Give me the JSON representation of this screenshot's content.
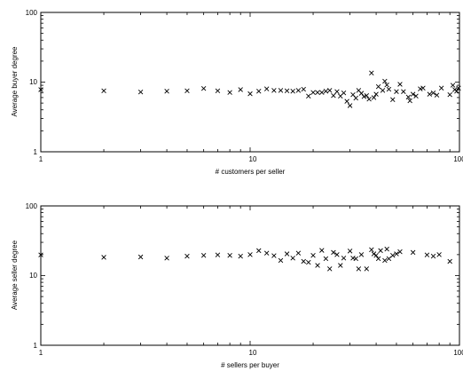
{
  "chart_data": [
    {
      "type": "scatter",
      "xlabel": "# customers per seller",
      "ylabel": "Average buyer degree",
      "xscale": "log",
      "yscale": "log",
      "xlim": [
        1,
        100
      ],
      "ylim": [
        1,
        100
      ],
      "x_tick_labels": [
        "1",
        "10",
        "100"
      ],
      "y_tick_labels": [
        "1",
        "10",
        "100"
      ],
      "grid": false,
      "marker": "x",
      "points": [
        [
          1,
          7.8
        ],
        [
          2,
          7.5
        ],
        [
          3,
          7.2
        ],
        [
          4,
          7.4
        ],
        [
          5,
          7.5
        ],
        [
          6,
          8.1
        ],
        [
          7,
          7.5
        ],
        [
          8,
          7.1
        ],
        [
          9,
          7.8
        ],
        [
          10,
          6.8
        ],
        [
          11,
          7.4
        ],
        [
          12,
          8.0
        ],
        [
          13,
          7.6
        ],
        [
          14,
          7.6
        ],
        [
          15,
          7.5
        ],
        [
          16,
          7.4
        ],
        [
          17,
          7.6
        ],
        [
          18,
          7.9
        ],
        [
          19,
          6.3
        ],
        [
          20,
          7.1
        ],
        [
          21,
          7.1
        ],
        [
          22,
          7.1
        ],
        [
          23,
          7.4
        ],
        [
          24,
          7.6
        ],
        [
          25,
          6.4
        ],
        [
          26,
          7.3
        ],
        [
          27,
          6.3
        ],
        [
          28,
          7.0
        ],
        [
          29,
          5.3
        ],
        [
          30,
          4.6
        ],
        [
          31,
          6.6
        ],
        [
          32,
          5.9
        ],
        [
          33,
          7.6
        ],
        [
          34,
          6.9
        ],
        [
          35,
          6.2
        ],
        [
          36,
          6.4
        ],
        [
          37,
          5.7
        ],
        [
          38,
          13.5
        ],
        [
          39,
          6.0
        ],
        [
          40,
          6.7
        ],
        [
          41,
          8.6
        ],
        [
          43,
          7.6
        ],
        [
          44,
          10.3
        ],
        [
          45,
          9.1
        ],
        [
          46,
          7.9
        ],
        [
          48,
          5.6
        ],
        [
          50,
          7.3
        ],
        [
          52,
          9.3
        ],
        [
          54,
          7.3
        ],
        [
          57,
          6.1
        ],
        [
          58,
          5.4
        ],
        [
          60,
          6.7
        ],
        [
          62,
          6.3
        ],
        [
          65,
          8.0
        ],
        [
          67,
          8.2
        ],
        [
          72,
          6.7
        ],
        [
          75,
          7.0
        ],
        [
          78,
          6.5
        ],
        [
          82,
          8.2
        ],
        [
          90,
          6.6
        ],
        [
          93,
          9.0
        ],
        [
          95,
          7.8
        ],
        [
          97,
          7.4
        ],
        [
          99,
          8.2
        ]
      ]
    },
    {
      "type": "scatter",
      "xlabel": "# sellers per buyer",
      "ylabel": "Average seller degree",
      "xscale": "log",
      "yscale": "log",
      "xlim": [
        1,
        100
      ],
      "ylim": [
        1,
        100
      ],
      "x_tick_labels": [
        "1",
        "10",
        "100"
      ],
      "y_tick_labels": [
        "1",
        "10",
        "100"
      ],
      "grid": false,
      "marker": "x",
      "points": [
        [
          1,
          19.8
        ],
        [
          2,
          18.3
        ],
        [
          3,
          18.5
        ],
        [
          4,
          17.8
        ],
        [
          5,
          19.0
        ],
        [
          6,
          19.5
        ],
        [
          7,
          19.8
        ],
        [
          8,
          19.5
        ],
        [
          9,
          19.0
        ],
        [
          10,
          20.0
        ],
        [
          11,
          22.8
        ],
        [
          12,
          21.0
        ],
        [
          13,
          19.3
        ],
        [
          14,
          16.5
        ],
        [
          15,
          20.5
        ],
        [
          16,
          17.8
        ],
        [
          17,
          21.0
        ],
        [
          18,
          16.0
        ],
        [
          19,
          15.5
        ],
        [
          20,
          19.5
        ],
        [
          21,
          14.0
        ],
        [
          22,
          23.0
        ],
        [
          23,
          17.5
        ],
        [
          24,
          12.5
        ],
        [
          25,
          21.5
        ],
        [
          26,
          20.0
        ],
        [
          27,
          14.0
        ],
        [
          28,
          17.8
        ],
        [
          30,
          22.5
        ],
        [
          31,
          17.8
        ],
        [
          32,
          17.5
        ],
        [
          33,
          12.5
        ],
        [
          34,
          20.0
        ],
        [
          36,
          12.5
        ],
        [
          38,
          23.5
        ],
        [
          39,
          20.5
        ],
        [
          40,
          19.5
        ],
        [
          41,
          17.5
        ],
        [
          42,
          22.8
        ],
        [
          44,
          16.5
        ],
        [
          45,
          24.0
        ],
        [
          46,
          17.5
        ],
        [
          48,
          19.5
        ],
        [
          50,
          20.5
        ],
        [
          52,
          22.0
        ],
        [
          60,
          21.5
        ],
        [
          70,
          19.8
        ],
        [
          75,
          19.0
        ],
        [
          80,
          20.0
        ],
        [
          90,
          16.0
        ]
      ]
    }
  ]
}
